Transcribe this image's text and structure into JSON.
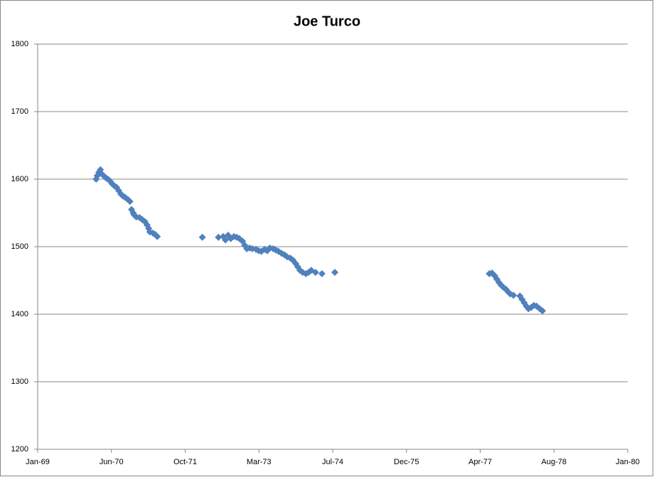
{
  "chart_data": {
    "type": "scatter",
    "title": "Joe Turco",
    "series": [
      {
        "color": "#4f81bd",
        "x": [
          1970.09,
          1970.11,
          1970.14,
          1970.17,
          1970.19,
          1970.23,
          1970.27,
          1970.31,
          1970.35,
          1970.39,
          1970.43,
          1970.47,
          1970.51,
          1970.55,
          1970.59,
          1970.63,
          1970.68,
          1970.72,
          1970.75,
          1970.78,
          1970.8,
          1970.84,
          1970.9,
          1970.95,
          1971.0,
          1971.04,
          1971.07,
          1971.09,
          1971.15,
          1971.19,
          1971.23,
          1972.07,
          1972.37,
          1972.46,
          1972.5,
          1972.55,
          1972.6,
          1972.66,
          1972.71,
          1972.76,
          1972.82,
          1972.86,
          1972.9,
          1972.95,
          1973.0,
          1973.07,
          1973.12,
          1973.17,
          1973.23,
          1973.28,
          1973.33,
          1973.39,
          1973.44,
          1973.49,
          1973.55,
          1973.6,
          1973.65,
          1973.71,
          1973.76,
          1973.81,
          1973.85,
          1973.89,
          1973.94,
          1974.0,
          1974.05,
          1974.1,
          1974.18,
          1974.3,
          1974.54,
          1977.42,
          1977.47,
          1977.52,
          1977.56,
          1977.6,
          1977.64,
          1977.68,
          1977.73,
          1977.77,
          1977.81,
          1977.87,
          1977.99,
          1978.03,
          1978.07,
          1978.11,
          1978.15,
          1978.2,
          1978.25,
          1978.3,
          1978.36,
          1978.41
        ],
        "values": [
          1600,
          1605,
          1610,
          1614,
          1608,
          1605,
          1602,
          1600,
          1597,
          1593,
          1590,
          1588,
          1583,
          1578,
          1575,
          1573,
          1570,
          1567,
          1555,
          1550,
          1547,
          1544,
          1543,
          1540,
          1537,
          1532,
          1527,
          1522,
          1520,
          1518,
          1515,
          1514,
          1514,
          1515,
          1510,
          1517,
          1512,
          1515,
          1514,
          1512,
          1508,
          1502,
          1497,
          1498,
          1497,
          1496,
          1494,
          1493,
          1496,
          1494,
          1498,
          1497,
          1495,
          1493,
          1490,
          1488,
          1485,
          1483,
          1480,
          1475,
          1470,
          1465,
          1462,
          1460,
          1462,
          1465,
          1462,
          1460,
          1462,
          1460,
          1461,
          1457,
          1452,
          1447,
          1443,
          1440,
          1437,
          1433,
          1430,
          1428,
          1427,
          1422,
          1417,
          1412,
          1408,
          1410,
          1413,
          1412,
          1408,
          1405
        ]
      }
    ],
    "xlim": [
      1969,
      1980
    ],
    "xticks": [
      {
        "value": 1969,
        "label": "Jan-69"
      },
      {
        "value": 1970.375,
        "label": "Jun-70"
      },
      {
        "value": 1971.75,
        "label": "Oct-71"
      },
      {
        "value": 1973.125,
        "label": "Mar-73"
      },
      {
        "value": 1974.5,
        "label": "Jul-74"
      },
      {
        "value": 1975.875,
        "label": "Dec-75"
      },
      {
        "value": 1977.25,
        "label": "Apr-77"
      },
      {
        "value": 1978.625,
        "label": "Aug-78"
      },
      {
        "value": 1980,
        "label": "Jan-80"
      }
    ],
    "ylim": [
      1200,
      1800
    ],
    "yticks": [
      1200,
      1300,
      1400,
      1500,
      1600,
      1700,
      1800
    ],
    "grid": true
  }
}
